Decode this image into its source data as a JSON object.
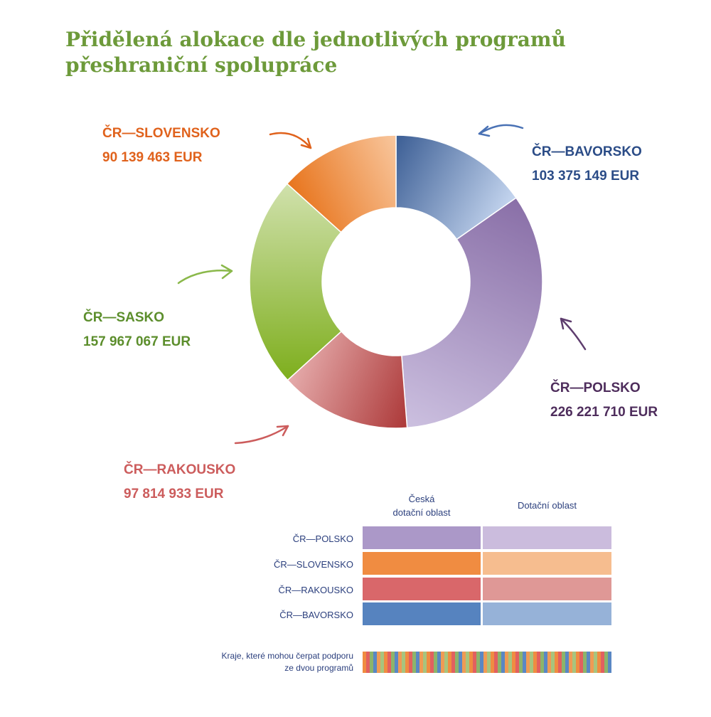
{
  "title": {
    "line1": "Přidělená alokace dle jednotlivých programů",
    "line2": "přeshraniční spolupráce"
  },
  "chart_data": {
    "type": "pie",
    "variant": "donut",
    "currency": "EUR",
    "slices": [
      {
        "name": "ČR—BAVORSKO",
        "value": 103375149,
        "display": "103 375 149  EUR",
        "color_dark": "#3e6096",
        "color_light": "#c3d4ee",
        "label_color": "#2b4c87"
      },
      {
        "name": "ČR—POLSKO",
        "value": 226221710,
        "display": "226 221 710  EUR",
        "color_dark": "#8a70a8",
        "color_light": "#cbbfdf",
        "label_color": "#4e2d5c"
      },
      {
        "name": "ČR—RAKOUSKO",
        "value": 97814933,
        "display": "97 814 933  EUR",
        "color_dark": "#ad3a3a",
        "color_light": "#e4a9a9",
        "label_color": "#cc5c5c"
      },
      {
        "name": "ČR—SASKO",
        "value": 157967067,
        "display": "157 967 067  EUR",
        "color_dark": "#7faf1f",
        "color_light": "#cfe0aa",
        "label_color": "#5c8e2c"
      },
      {
        "name": "ČR—SLOVENSKO",
        "value": 90139463,
        "display": "90 139 463  EUR",
        "color_dark": "#e8761f",
        "color_light": "#f8c59b",
        "label_color": "#e0621c"
      }
    ]
  },
  "legend": {
    "col1": "Česká dotační oblast",
    "col1_line1": "Česká",
    "col1_line2": "dotační oblast",
    "col2": "Dotační oblast",
    "rows": [
      {
        "name": "ČR—POLSKO",
        "color1": "#ab98c8",
        "color2": "#cbbcdd"
      },
      {
        "name": "ČR—SLOVENSKO",
        "color1": "#f08c41",
        "color2": "#f6bd8f"
      },
      {
        "name": "ČR—RAKOUSKO",
        "color1": "#d9676a",
        "color2": "#df9896"
      },
      {
        "name": "ČR—BAVORSKO",
        "color1": "#5683bf",
        "color2": "#96b2d8"
      }
    ],
    "note_line1": "Kraje, které mohou čerpat podporu",
    "note_line2": "ze dvou programů"
  }
}
